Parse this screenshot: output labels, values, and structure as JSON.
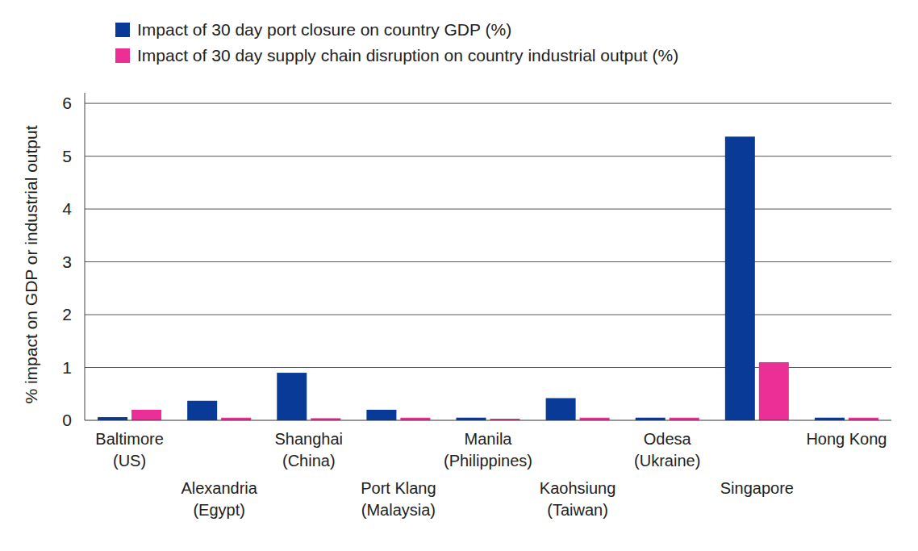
{
  "chart_data": {
    "type": "bar",
    "y_label": "% impact on GDP or industrial output",
    "categories": [
      "Baltimore\n(US)",
      "Alexandria\n(Egypt)",
      "Shanghai\n(China)",
      "Port Klang\n(Malaysia)",
      "Manila\n(Philippines)",
      "Kaohsiung\n(Taiwan)",
      "Odesa\n(Ukraine)",
      "Singapore",
      "Hong Kong"
    ],
    "series": [
      {
        "name": "Impact of 30 day port closure on country GDP (%)",
        "color": "#0a3a97",
        "values": [
          0.06,
          0.37,
          0.9,
          0.2,
          0.05,
          0.42,
          0.05,
          5.37,
          0.05
        ]
      },
      {
        "name": "Impact of 30 day supply chain disruption on country industrial output (%)",
        "color": "#eb2f96",
        "values": [
          0.2,
          0.05,
          0.04,
          0.05,
          0.03,
          0.05,
          0.05,
          1.1,
          0.05
        ]
      }
    ],
    "ylim": [
      0,
      6.2
    ],
    "yticks": [
      0,
      1,
      2,
      3,
      4,
      5,
      6
    ],
    "grid": true,
    "legend": "top-left"
  }
}
